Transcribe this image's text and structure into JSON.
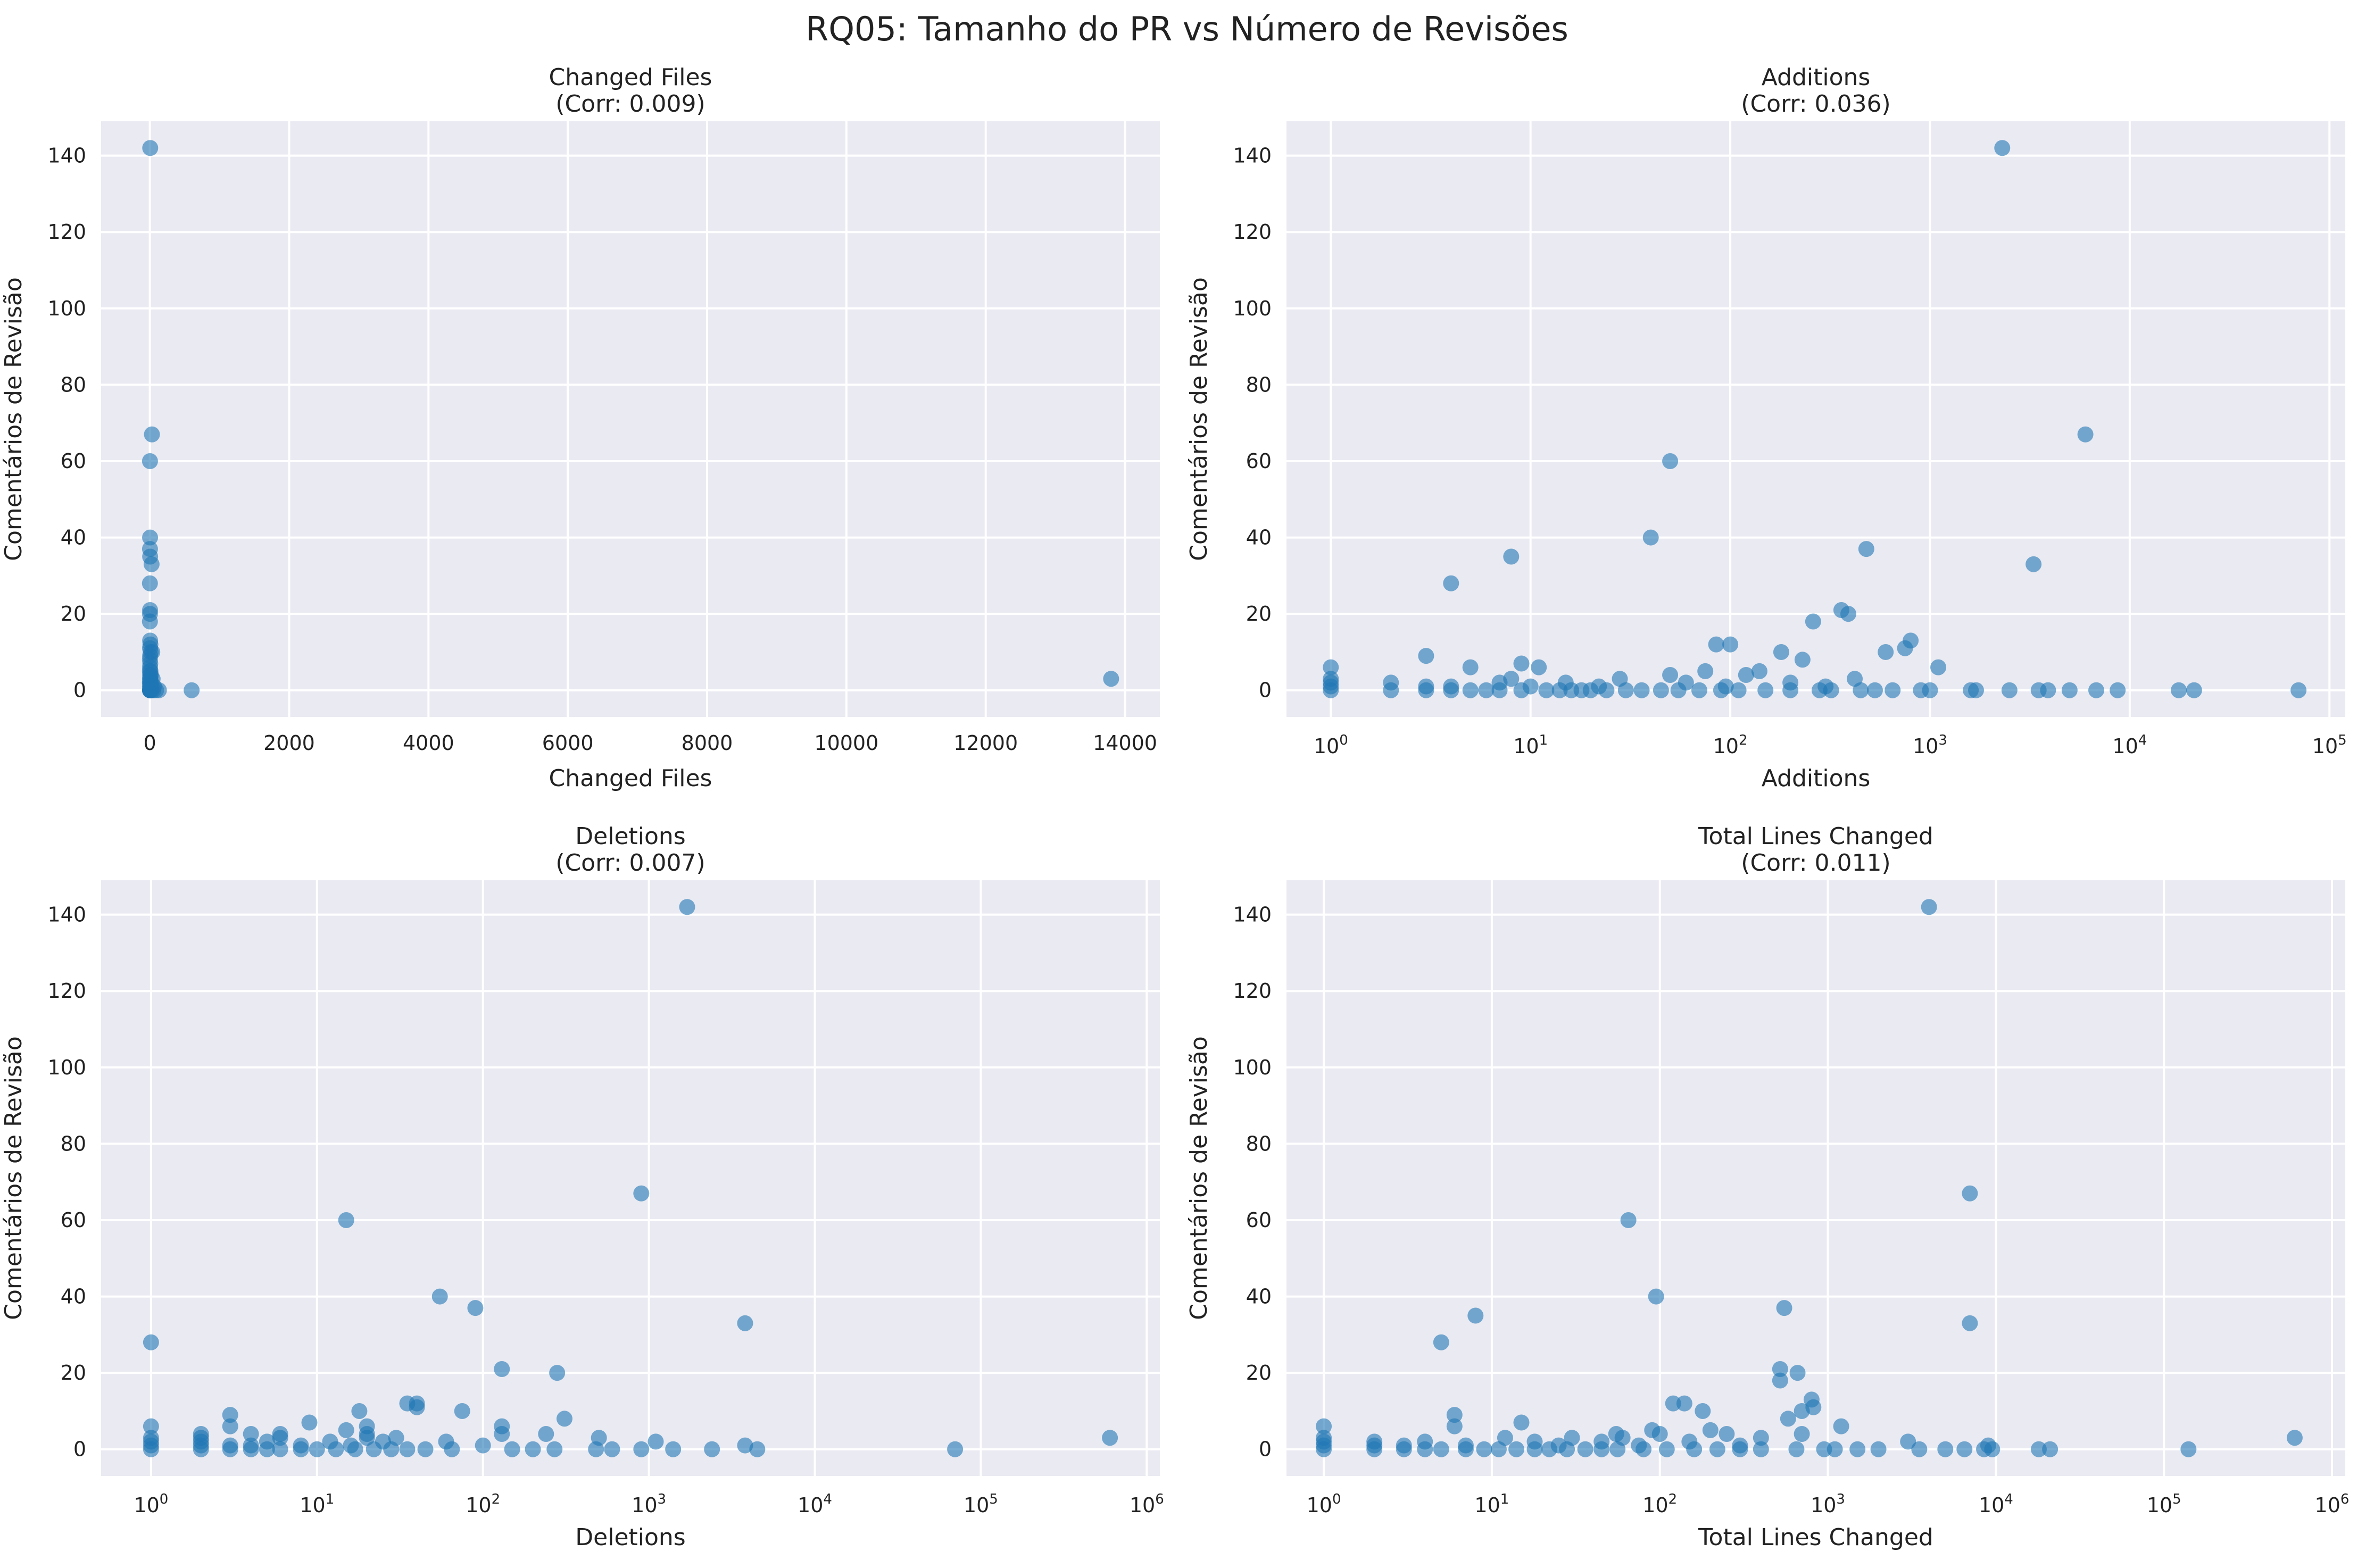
{
  "suptitle": "RQ05: Tamanho do PR vs Número de Revisões",
  "chart_data": [
    {
      "type": "scatter",
      "title": "Changed Files",
      "subtitle": "(Corr: 0.009)",
      "xlabel": "Changed Files",
      "ylabel": "Comentários de Revisão",
      "xscale": "linear",
      "xlim": [
        -700,
        14500
      ],
      "ylim": [
        -7,
        149
      ],
      "xticks": [
        0,
        2000,
        4000,
        6000,
        8000,
        10000,
        12000,
        14000
      ],
      "yticks": [
        0,
        20,
        40,
        60,
        80,
        100,
        120,
        140
      ],
      "grid": true,
      "points": [
        [
          5,
          142
        ],
        [
          30,
          67
        ],
        [
          2,
          60
        ],
        [
          3,
          40
        ],
        [
          2,
          37
        ],
        [
          4,
          35
        ],
        [
          25,
          33
        ],
        [
          1,
          28
        ],
        [
          3,
          21
        ],
        [
          2,
          20
        ],
        [
          1,
          18
        ],
        [
          4,
          13
        ],
        [
          8,
          12
        ],
        [
          2,
          11
        ],
        [
          12,
          10
        ],
        [
          35,
          10
        ],
        [
          3,
          9
        ],
        [
          1,
          8
        ],
        [
          6,
          7
        ],
        [
          2,
          6
        ],
        [
          9,
          5
        ],
        [
          1,
          5
        ],
        [
          3,
          4
        ],
        [
          15,
          4
        ],
        [
          2,
          3
        ],
        [
          6,
          3
        ],
        [
          40,
          3
        ],
        [
          1,
          2
        ],
        [
          4,
          2
        ],
        [
          20,
          2
        ],
        [
          2,
          1
        ],
        [
          5,
          1
        ],
        [
          10,
          1
        ],
        [
          60,
          1
        ],
        [
          1,
          0
        ],
        [
          2,
          0
        ],
        [
          3,
          0
        ],
        [
          5,
          0
        ],
        [
          8,
          0
        ],
        [
          12,
          0
        ],
        [
          25,
          0
        ],
        [
          50,
          0
        ],
        [
          90,
          0
        ],
        [
          130,
          0
        ],
        [
          600,
          0
        ],
        [
          13800,
          3
        ]
      ],
      "color": "#1f77b4"
    },
    {
      "type": "scatter",
      "title": "Additions",
      "subtitle": "(Corr: 0.036)",
      "xlabel": "Additions",
      "ylabel": "Comentários de Revisão",
      "xscale": "log",
      "xlim": [
        0.6,
        120000
      ],
      "ylim": [
        -7,
        149
      ],
      "xticks": [
        1,
        10,
        100,
        1000,
        10000,
        100000
      ],
      "yticks": [
        0,
        20,
        40,
        60,
        80,
        100,
        120,
        140
      ],
      "grid": true,
      "points": [
        [
          2300,
          142
        ],
        [
          6000,
          67
        ],
        [
          50,
          60
        ],
        [
          40,
          40
        ],
        [
          480,
          37
        ],
        [
          8,
          35
        ],
        [
          3300,
          33
        ],
        [
          4,
          28
        ],
        [
          360,
          21
        ],
        [
          390,
          20
        ],
        [
          260,
          18
        ],
        [
          800,
          13
        ],
        [
          85,
          12
        ],
        [
          100,
          12
        ],
        [
          750,
          11
        ],
        [
          600,
          10
        ],
        [
          180,
          10
        ],
        [
          3,
          9
        ],
        [
          230,
          8
        ],
        [
          9,
          7
        ],
        [
          11,
          6
        ],
        [
          5,
          6
        ],
        [
          1100,
          6
        ],
        [
          1,
          6
        ],
        [
          140,
          5
        ],
        [
          75,
          5
        ],
        [
          120,
          4
        ],
        [
          50,
          4
        ],
        [
          1,
          3
        ],
        [
          28,
          3
        ],
        [
          8,
          3
        ],
        [
          420,
          3
        ],
        [
          1,
          2
        ],
        [
          2,
          2
        ],
        [
          7,
          2
        ],
        [
          15,
          2
        ],
        [
          60,
          2
        ],
        [
          200,
          2
        ],
        [
          1,
          1
        ],
        [
          3,
          1
        ],
        [
          4,
          1
        ],
        [
          10,
          1
        ],
        [
          22,
          1
        ],
        [
          95,
          1
        ],
        [
          300,
          1
        ],
        [
          1,
          0
        ],
        [
          2,
          0
        ],
        [
          3,
          0
        ],
        [
          4,
          0
        ],
        [
          5,
          0
        ],
        [
          6,
          0
        ],
        [
          7,
          0
        ],
        [
          9,
          0
        ],
        [
          12,
          0
        ],
        [
          14,
          0
        ],
        [
          16,
          0
        ],
        [
          18,
          0
        ],
        [
          20,
          0
        ],
        [
          24,
          0
        ],
        [
          30,
          0
        ],
        [
          36,
          0
        ],
        [
          45,
          0
        ],
        [
          55,
          0
        ],
        [
          70,
          0
        ],
        [
          90,
          0
        ],
        [
          110,
          0
        ],
        [
          150,
          0
        ],
        [
          200,
          0
        ],
        [
          280,
          0
        ],
        [
          320,
          0
        ],
        [
          450,
          0
        ],
        [
          530,
          0
        ],
        [
          650,
          0
        ],
        [
          900,
          0
        ],
        [
          1000,
          0
        ],
        [
          1600,
          0
        ],
        [
          1700,
          0
        ],
        [
          2500,
          0
        ],
        [
          3500,
          0
        ],
        [
          3900,
          0
        ],
        [
          5000,
          0
        ],
        [
          6800,
          0
        ],
        [
          8700,
          0
        ],
        [
          17600,
          0
        ],
        [
          21000,
          0
        ],
        [
          70000,
          0
        ]
      ],
      "color": "#1f77b4"
    },
    {
      "type": "scatter",
      "title": "Deletions",
      "subtitle": "(Corr: 0.007)",
      "xlabel": "Deletions",
      "ylabel": "Comentários de Revisão",
      "xscale": "log",
      "xlim": [
        0.5,
        1200000
      ],
      "ylim": [
        -7,
        149
      ],
      "xticks": [
        1,
        10,
        100,
        1000,
        10000,
        100000,
        1000000
      ],
      "yticks": [
        0,
        20,
        40,
        60,
        80,
        100,
        120,
        140
      ],
      "grid": true,
      "points": [
        [
          1700,
          142
        ],
        [
          900,
          67
        ],
        [
          15,
          60
        ],
        [
          55,
          40
        ],
        [
          90,
          37
        ],
        [
          3800,
          33
        ],
        [
          1,
          28
        ],
        [
          130,
          21
        ],
        [
          280,
          20
        ],
        [
          40,
          12
        ],
        [
          35,
          12
        ],
        [
          40,
          11
        ],
        [
          75,
          10
        ],
        [
          18,
          10
        ],
        [
          3,
          9
        ],
        [
          310,
          8
        ],
        [
          9,
          7
        ],
        [
          1,
          6
        ],
        [
          3,
          6
        ],
        [
          130,
          6
        ],
        [
          20,
          6
        ],
        [
          15,
          5
        ],
        [
          130,
          4
        ],
        [
          2,
          4
        ],
        [
          4,
          4
        ],
        [
          6,
          4
        ],
        [
          20,
          4
        ],
        [
          240,
          4
        ],
        [
          1,
          3
        ],
        [
          2,
          3
        ],
        [
          6,
          3
        ],
        [
          20,
          3
        ],
        [
          30,
          3
        ],
        [
          500,
          3
        ],
        [
          600000,
          3
        ],
        [
          1,
          2
        ],
        [
          2,
          2
        ],
        [
          5,
          2
        ],
        [
          12,
          2
        ],
        [
          25,
          2
        ],
        [
          60,
          2
        ],
        [
          1100,
          2
        ],
        [
          3800,
          1
        ],
        [
          1,
          1
        ],
        [
          2,
          1
        ],
        [
          3,
          1
        ],
        [
          4,
          1
        ],
        [
          8,
          1
        ],
        [
          16,
          1
        ],
        [
          100,
          1
        ],
        [
          1,
          0
        ],
        [
          2,
          0
        ],
        [
          3,
          0
        ],
        [
          4,
          0
        ],
        [
          5,
          0
        ],
        [
          6,
          0
        ],
        [
          8,
          0
        ],
        [
          10,
          0
        ],
        [
          13,
          0
        ],
        [
          17,
          0
        ],
        [
          22,
          0
        ],
        [
          28,
          0
        ],
        [
          35,
          0
        ],
        [
          45,
          0
        ],
        [
          65,
          0
        ],
        [
          150,
          0
        ],
        [
          200,
          0
        ],
        [
          270,
          0
        ],
        [
          480,
          0
        ],
        [
          600,
          0
        ],
        [
          900,
          0
        ],
        [
          1400,
          0
        ],
        [
          2400,
          0
        ],
        [
          4500,
          0
        ],
        [
          70000,
          0
        ]
      ],
      "color": "#1f77b4"
    },
    {
      "type": "scatter",
      "title": "Total Lines Changed",
      "subtitle": "(Corr: 0.011)",
      "xlabel": "Total Lines Changed",
      "ylabel": "Comentários de Revisão",
      "xscale": "log",
      "xlim": [
        0.6,
        1200000
      ],
      "ylim": [
        -7,
        149
      ],
      "xticks": [
        1,
        10,
        100,
        1000,
        10000,
        100000,
        1000000
      ],
      "yticks": [
        0,
        20,
        40,
        60,
        80,
        100,
        120,
        140
      ],
      "grid": true,
      "points": [
        [
          4000,
          142
        ],
        [
          7000,
          67
        ],
        [
          65,
          60
        ],
        [
          95,
          40
        ],
        [
          550,
          37
        ],
        [
          8,
          35
        ],
        [
          7000,
          33
        ],
        [
          5,
          28
        ],
        [
          520,
          21
        ],
        [
          660,
          20
        ],
        [
          520,
          18
        ],
        [
          800,
          13
        ],
        [
          120,
          12
        ],
        [
          140,
          12
        ],
        [
          820,
          11
        ],
        [
          700,
          10
        ],
        [
          180,
          10
        ],
        [
          6,
          9
        ],
        [
          580,
          8
        ],
        [
          15,
          7
        ],
        [
          6,
          6
        ],
        [
          1,
          6
        ],
        [
          1200,
          6
        ],
        [
          200,
          5
        ],
        [
          90,
          5
        ],
        [
          250,
          4
        ],
        [
          55,
          4
        ],
        [
          100,
          4
        ],
        [
          700,
          4
        ],
        [
          1,
          3
        ],
        [
          12,
          3
        ],
        [
          30,
          3
        ],
        [
          60,
          3
        ],
        [
          400,
          3
        ],
        [
          600000,
          3
        ],
        [
          1,
          2
        ],
        [
          2,
          2
        ],
        [
          4,
          2
        ],
        [
          18,
          2
        ],
        [
          45,
          2
        ],
        [
          150,
          2
        ],
        [
          3000,
          2
        ],
        [
          1,
          1
        ],
        [
          2,
          1
        ],
        [
          3,
          1
        ],
        [
          7,
          1
        ],
        [
          25,
          1
        ],
        [
          75,
          1
        ],
        [
          300,
          1
        ],
        [
          9000,
          1
        ],
        [
          1,
          0
        ],
        [
          2,
          0
        ],
        [
          3,
          0
        ],
        [
          4,
          0
        ],
        [
          5,
          0
        ],
        [
          7,
          0
        ],
        [
          9,
          0
        ],
        [
          11,
          0
        ],
        [
          14,
          0
        ],
        [
          18,
          0
        ],
        [
          22,
          0
        ],
        [
          28,
          0
        ],
        [
          36,
          0
        ],
        [
          45,
          0
        ],
        [
          56,
          0
        ],
        [
          80,
          0
        ],
        [
          110,
          0
        ],
        [
          160,
          0
        ],
        [
          220,
          0
        ],
        [
          300,
          0
        ],
        [
          400,
          0
        ],
        [
          650,
          0
        ],
        [
          950,
          0
        ],
        [
          1100,
          0
        ],
        [
          1500,
          0
        ],
        [
          2000,
          0
        ],
        [
          3500,
          0
        ],
        [
          5000,
          0
        ],
        [
          6500,
          0
        ],
        [
          8500,
          0
        ],
        [
          9500,
          0
        ],
        [
          18000,
          0
        ],
        [
          21000,
          0
        ],
        [
          140000,
          0
        ]
      ],
      "color": "#1f77b4"
    }
  ]
}
